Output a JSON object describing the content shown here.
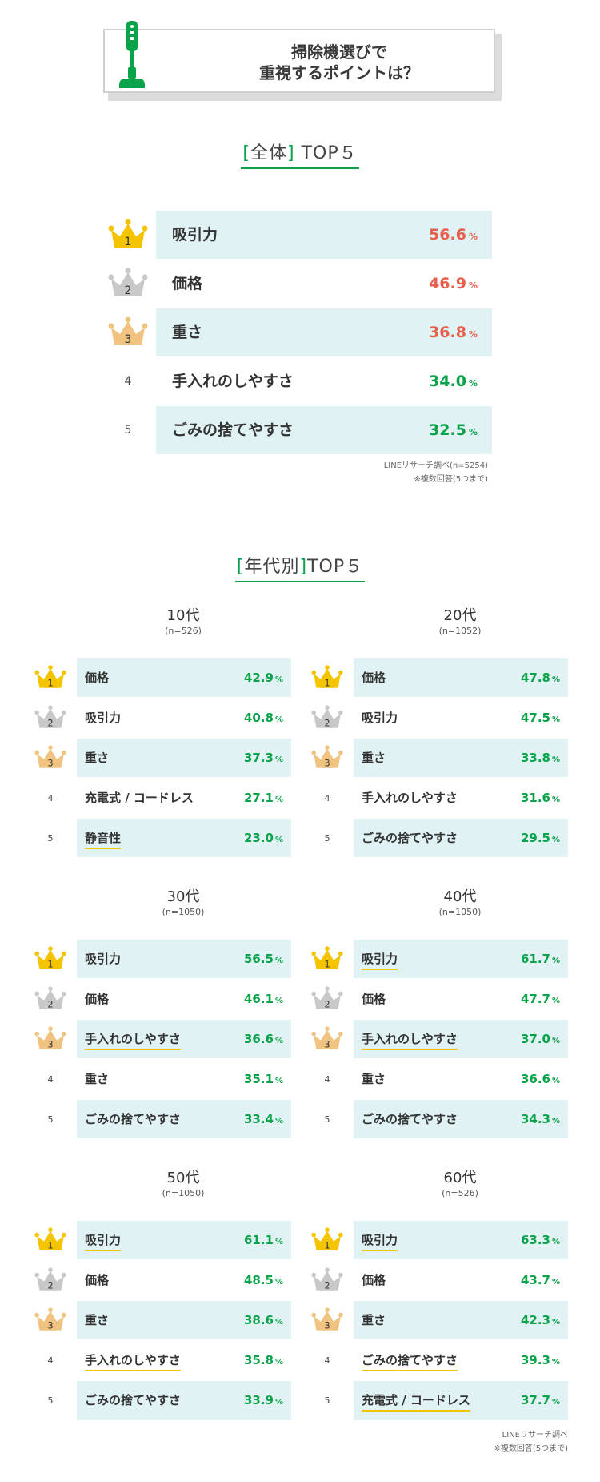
{
  "header": {
    "title_line1": "掃除機選びで",
    "title_line2": "重視するポイントは？"
  },
  "overall": {
    "heading_open": "[",
    "heading_text": "全体",
    "heading_close": "]",
    "heading_suffix": " TOP５",
    "note_line1": "LINEリサーチ調べ(n=5254)",
    "note_line2": "※複数回答(5つまで)"
  },
  "by_age": {
    "heading_open": "[",
    "heading_text": "年代別",
    "heading_close": "]",
    "heading_suffix": "TOP５",
    "note_line1": "LINEリサーチ調べ",
    "note_line2": "※複数回答(5つまで)"
  },
  "percent_sign": "%",
  "colors": {
    "accent_green": "#0aa34a",
    "highlight_red": "#e8604c",
    "row_shade": "#e0f2f4",
    "gold": "#f5c400",
    "silver": "#c8c8c8",
    "bronze": "#f0c480",
    "underline_yellow": "#f2c500"
  },
  "chart_data": [
    {
      "type": "table",
      "title": "全体",
      "ranks": [
        "1",
        "2",
        "3",
        "4",
        "5"
      ],
      "categories": [
        "吸引力",
        "価格",
        "重さ",
        "手入れのしやすさ",
        "ごみの捨てやすさ"
      ],
      "values": [
        56.6,
        46.9,
        36.8,
        34.0,
        32.5
      ],
      "value_labels": [
        "56.6",
        "46.9",
        "36.8",
        "34.0",
        "32.5"
      ],
      "unit": "%"
    },
    {
      "type": "table",
      "title": "10代",
      "n": "(n=526)",
      "categories": [
        "価格",
        "吸引力",
        "重さ",
        "充電式 / コードレス",
        "静音性"
      ],
      "values": [
        42.9,
        40.8,
        37.3,
        27.1,
        23.0
      ],
      "value_labels": [
        "42.9",
        "40.8",
        "37.3",
        "27.1",
        "23.0"
      ],
      "underlined": [
        false,
        false,
        false,
        false,
        true
      ],
      "unit": "%"
    },
    {
      "type": "table",
      "title": "20代",
      "n": "(n=1052)",
      "categories": [
        "価格",
        "吸引力",
        "重さ",
        "手入れのしやすさ",
        "ごみの捨てやすさ"
      ],
      "values": [
        47.8,
        47.5,
        33.8,
        31.6,
        29.5
      ],
      "value_labels": [
        "47.8",
        "47.5",
        "33.8",
        "31.6",
        "29.5"
      ],
      "underlined": [
        false,
        false,
        false,
        false,
        false
      ],
      "unit": "%"
    },
    {
      "type": "table",
      "title": "30代",
      "n": "(n=1050)",
      "categories": [
        "吸引力",
        "価格",
        "手入れのしやすさ",
        "重さ",
        "ごみの捨てやすさ"
      ],
      "values": [
        56.5,
        46.1,
        36.6,
        35.1,
        33.4
      ],
      "value_labels": [
        "56.5",
        "46.1",
        "36.6",
        "35.1",
        "33.4"
      ],
      "underlined": [
        false,
        false,
        true,
        false,
        false
      ],
      "unit": "%"
    },
    {
      "type": "table",
      "title": "40代",
      "n": "(n=1050)",
      "categories": [
        "吸引力",
        "価格",
        "手入れのしやすさ",
        "重さ",
        "ごみの捨てやすさ"
      ],
      "values": [
        61.7,
        47.7,
        37.0,
        36.6,
        34.3
      ],
      "value_labels": [
        "61.7",
        "47.7",
        "37.0",
        "36.6",
        "34.3"
      ],
      "underlined": [
        true,
        false,
        true,
        false,
        false
      ],
      "unit": "%"
    },
    {
      "type": "table",
      "title": "50代",
      "n": "(n=1050)",
      "categories": [
        "吸引力",
        "価格",
        "重さ",
        "手入れのしやすさ",
        "ごみの捨てやすさ"
      ],
      "values": [
        61.1,
        48.5,
        38.6,
        35.8,
        33.9
      ],
      "value_labels": [
        "61.1",
        "48.5",
        "38.6",
        "35.8",
        "33.9"
      ],
      "underlined": [
        true,
        false,
        false,
        true,
        false
      ],
      "unit": "%"
    },
    {
      "type": "table",
      "title": "60代",
      "n": "(n=526)",
      "categories": [
        "吸引力",
        "価格",
        "重さ",
        "ごみの捨てやすさ",
        "充電式 / コードレス"
      ],
      "values": [
        63.3,
        43.7,
        42.3,
        39.3,
        37.7
      ],
      "value_labels": [
        "63.3",
        "43.7",
        "42.3",
        "39.3",
        "37.7"
      ],
      "underlined": [
        true,
        false,
        false,
        true,
        true
      ],
      "unit": "%"
    }
  ]
}
